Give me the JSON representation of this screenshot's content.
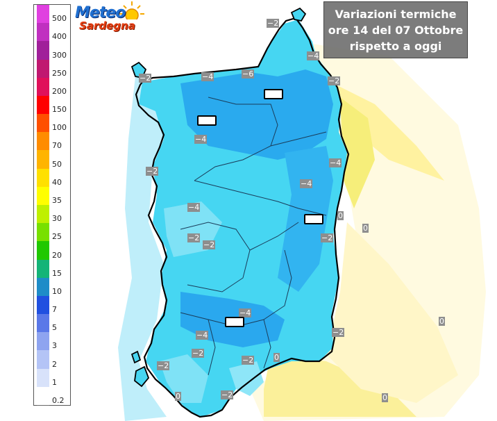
{
  "title": {
    "lines": [
      "Variazioni termiche",
      "ore 14 del 07 Ottobre",
      "rispetto a oggi"
    ]
  },
  "logo": {
    "line1": "Meteo",
    "line2": "Sardegna"
  },
  "legend": [
    {
      "label": "500",
      "color": "#e040e0"
    },
    {
      "label": "400",
      "color": "#c030c0"
    },
    {
      "label": "300",
      "color": "#a0209a"
    },
    {
      "label": "250",
      "color": "#c01870"
    },
    {
      "label": "200",
      "color": "#e0105a"
    },
    {
      "label": "150",
      "color": "#ff0000"
    },
    {
      "label": "100",
      "color": "#ff5000"
    },
    {
      "label": "70",
      "color": "#ff8c00"
    },
    {
      "label": "50",
      "color": "#ffb400"
    },
    {
      "label": "40",
      "color": "#ffe000"
    },
    {
      "label": "35",
      "color": "#fffe00"
    },
    {
      "label": "30",
      "color": "#bff000"
    },
    {
      "label": "25",
      "color": "#78e000"
    },
    {
      "label": "20",
      "color": "#20c800"
    },
    {
      "label": "15",
      "color": "#14b478"
    },
    {
      "label": "10",
      "color": "#1e8cc8"
    },
    {
      "label": "7",
      "color": "#2050e0"
    },
    {
      "label": "5",
      "color": "#5a78e8"
    },
    {
      "label": "3",
      "color": "#8ea4f0"
    },
    {
      "label": "2",
      "color": "#b4c4f6"
    },
    {
      "label": "1",
      "color": "#d8e2fa"
    },
    {
      "label": "0.2",
      "color": "#ffffff"
    }
  ],
  "isolines": [
    {
      "text": "−2"
    },
    {
      "text": "−4"
    },
    {
      "text": "−2"
    },
    {
      "text": "−4"
    },
    {
      "text": "−6"
    },
    {
      "text": "−2"
    },
    {
      "text": "−4"
    },
    {
      "text": "−4"
    },
    {
      "text": "−2"
    },
    {
      "text": "−4"
    },
    {
      "text": "−4"
    },
    {
      "text": "0"
    },
    {
      "text": "0"
    },
    {
      "text": "−2"
    },
    {
      "text": "−2"
    },
    {
      "text": "−2"
    },
    {
      "text": "−4"
    },
    {
      "text": "−4"
    },
    {
      "text": "−2"
    },
    {
      "text": "0"
    },
    {
      "text": "−2"
    },
    {
      "text": "−2"
    },
    {
      "text": "0"
    },
    {
      "text": "−2"
    },
    {
      "text": "−2"
    },
    {
      "text": "0"
    },
    {
      "text": "0"
    }
  ],
  "colors": {
    "sea_light": "#fff6c0",
    "sea_yellow": "#f4ec6e",
    "land_cyan": "#3ed2f2",
    "land_blue": "#1e9be8",
    "coastline": "#000000"
  }
}
